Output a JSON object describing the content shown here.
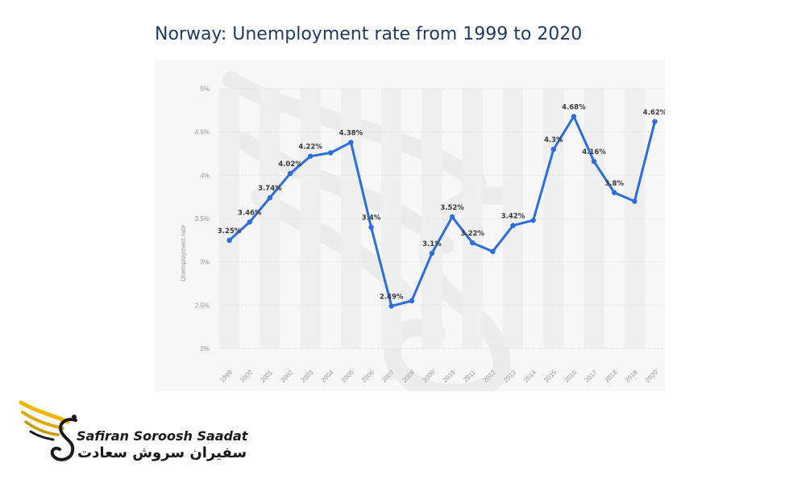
{
  "chart_data": {
    "type": "line",
    "title": "Norway: Unemployment rate from 1999 to 2020",
    "ylabel": "Unemployment rate",
    "xlabel": "",
    "ylim": [
      2,
      5
    ],
    "yticks": [
      "2%",
      "2.5%",
      "3%",
      "3.5%",
      "4%",
      "4.5%",
      "5%"
    ],
    "ytick_values": [
      2,
      2.5,
      3,
      3.5,
      4,
      4.5,
      5
    ],
    "categories": [
      "1999",
      "2000",
      "2001",
      "2002",
      "2003",
      "2004",
      "2005",
      "2006",
      "2007",
      "2008",
      "2009",
      "2010",
      "2011",
      "2012",
      "2013",
      "2014",
      "2015",
      "2016",
      "2017",
      "2018",
      "2019",
      "2020"
    ],
    "series": [
      {
        "values": [
          3.25,
          3.46,
          3.74,
          4.02,
          4.22,
          4.26,
          4.38,
          3.4,
          2.49,
          2.55,
          3.1,
          3.52,
          3.22,
          3.12,
          3.42,
          3.48,
          4.3,
          4.68,
          4.16,
          3.8,
          3.7,
          4.62
        ],
        "labels": [
          "3.25%",
          "3.46%",
          "3.74%",
          "4.02%",
          "4.22%",
          "",
          "4.38%",
          "3.4%",
          "2.49%",
          "",
          "3.1%",
          "3.52%",
          "3.22%",
          "",
          "3.42%",
          "",
          "4.3%",
          "4.68%",
          "4.16%",
          "3.8%",
          "",
          "4.62%"
        ],
        "color": "#2a6fdb"
      }
    ],
    "grid": true,
    "legend": "none"
  },
  "brand": {
    "name_en": "Safiran Soroosh Saadat",
    "name_fa": "سفیران سروش سعادت",
    "icon": "winged-s-logo",
    "accent": "#f2b705"
  }
}
